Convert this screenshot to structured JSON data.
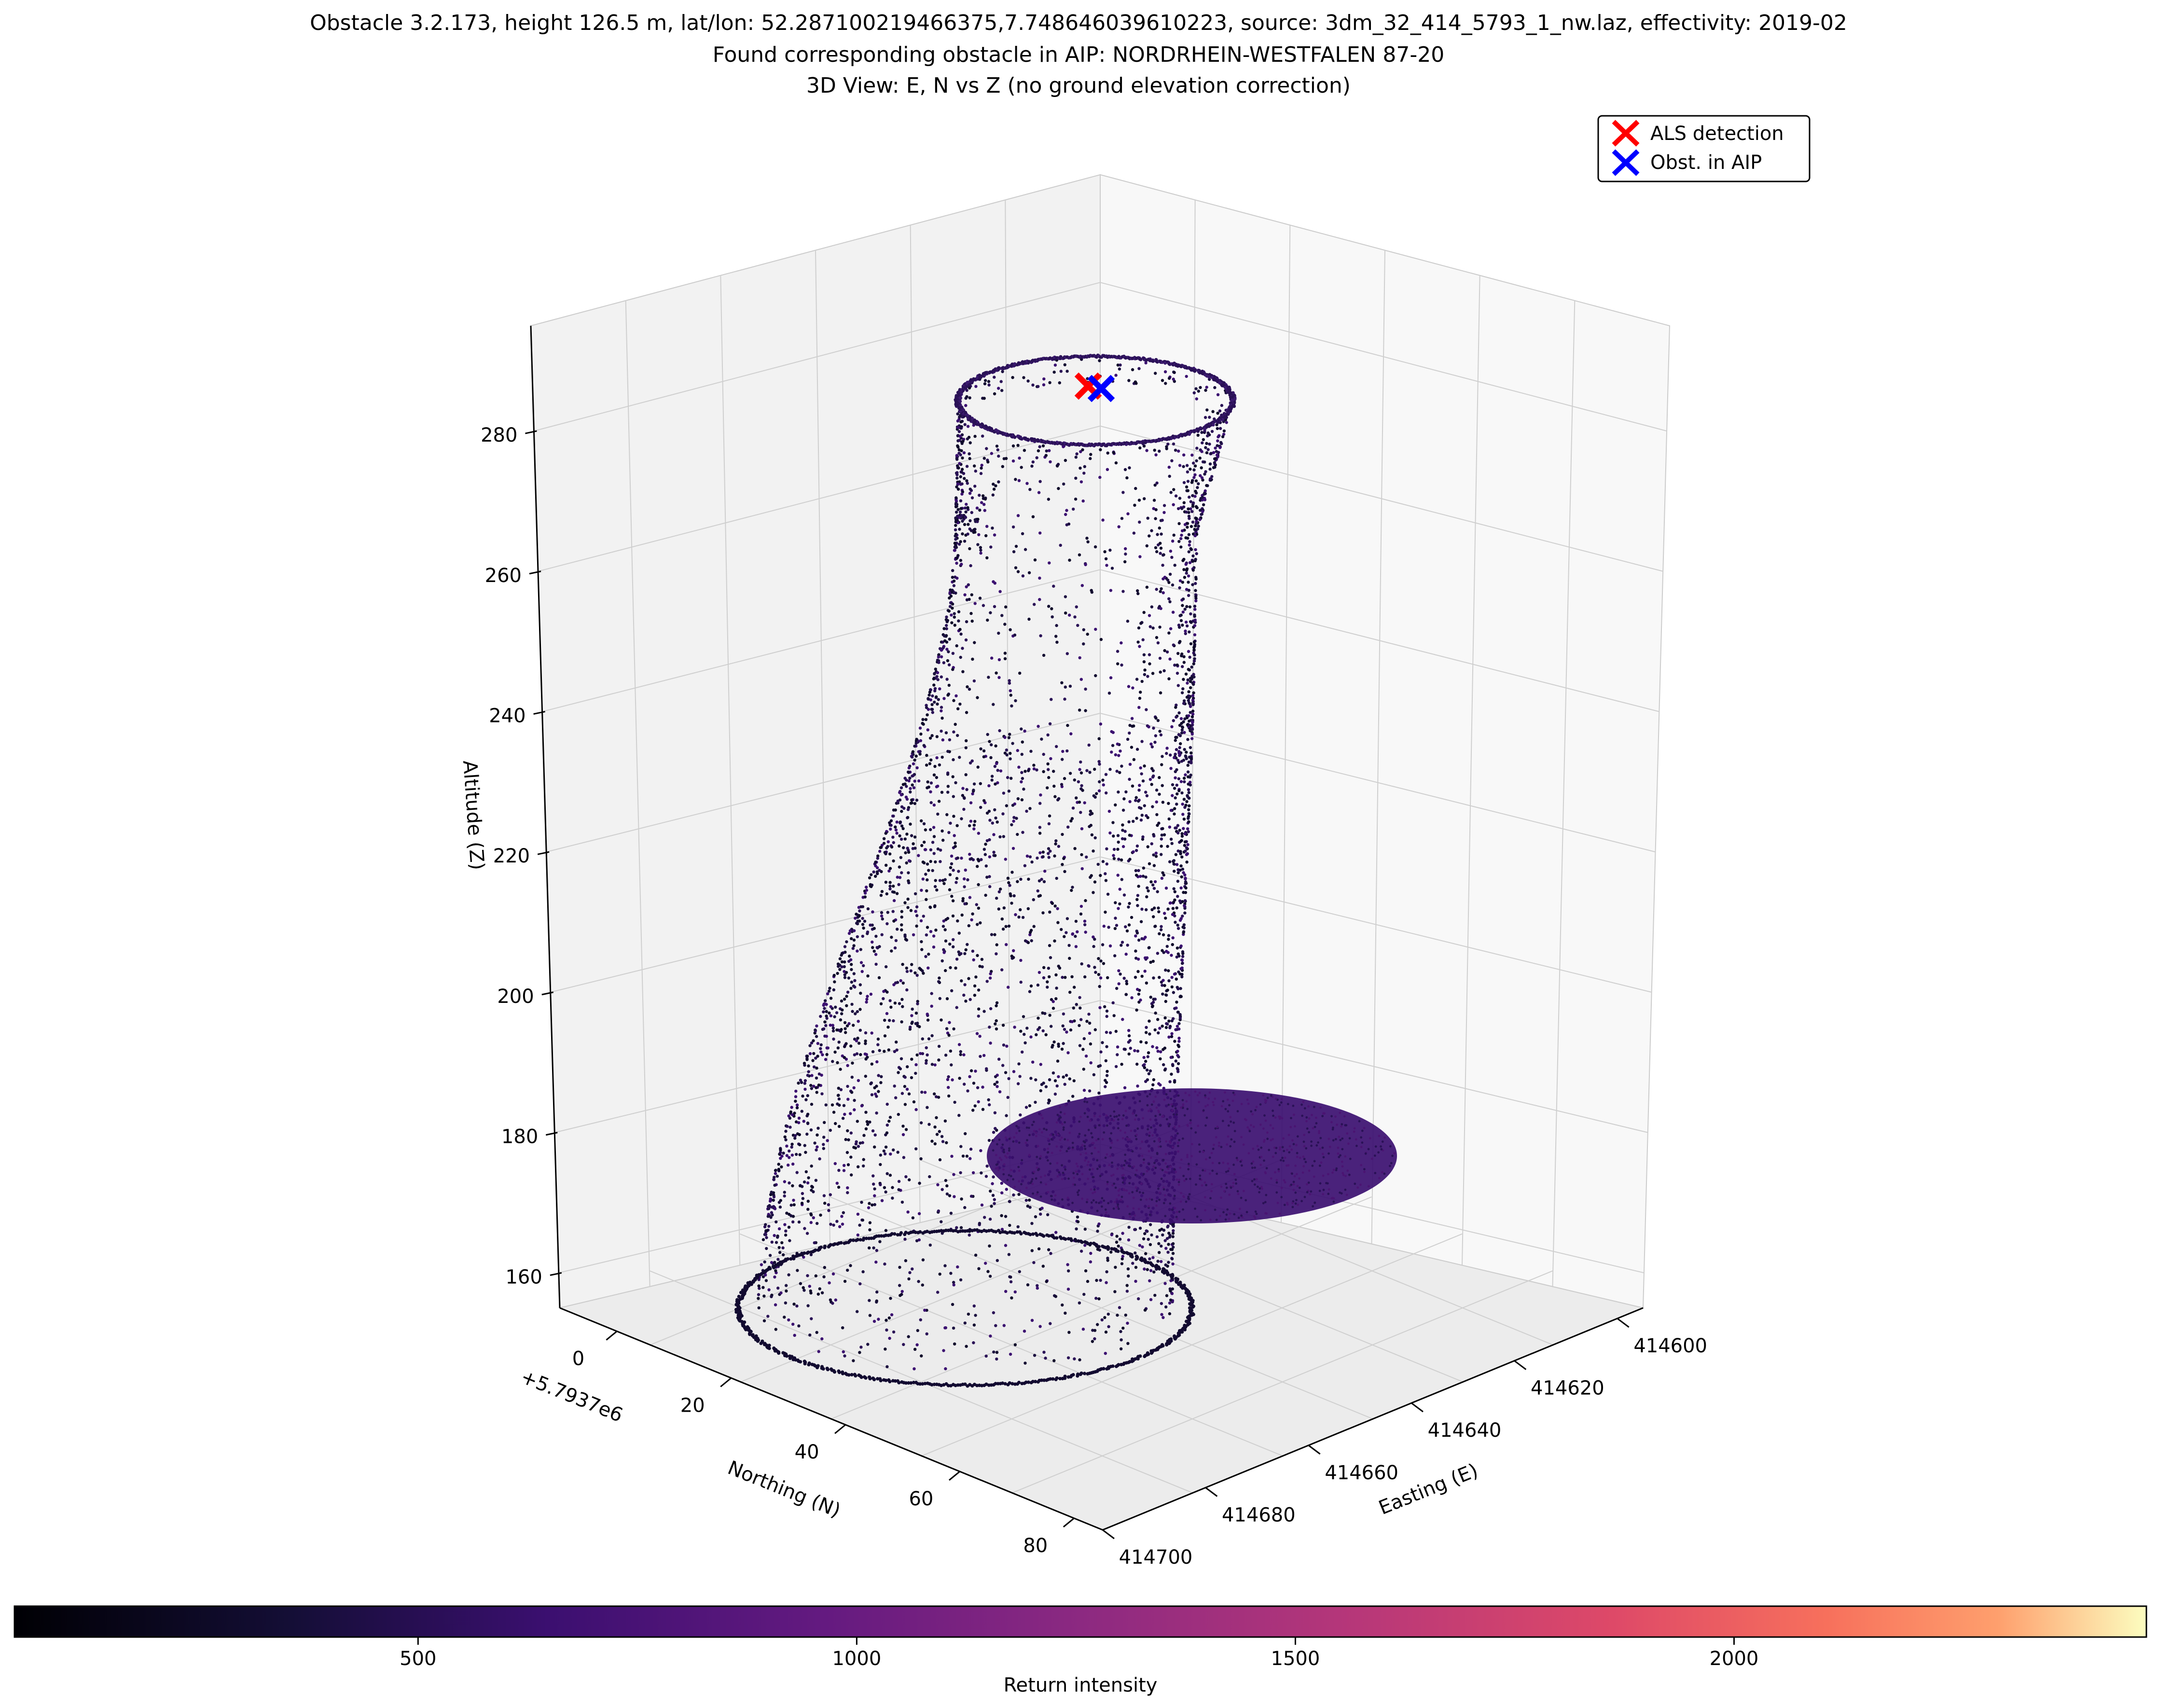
{
  "chart_data": {
    "type": "scatter",
    "title_lines": [
      "Obstacle 3.2.173, height 126.5 m, lat/lon: 52.287100219466375,7.748646039610223, source: 3dm_32_414_5793_1_nw.laz, effectivity: 2019-02",
      "Found corresponding obstacle in AIP: NORDRHEIN-WESTFALEN 87-20",
      "3D View: E, N vs Z (no ground elevation correction)"
    ],
    "xlabel": "Easting (E)",
    "ylabel": "Northing (N)",
    "zlabel": "Altitude (Z)",
    "y_offset_label": "+5.7937e6",
    "x_ticks": [
      "414600",
      "414620",
      "414640",
      "414660",
      "414680",
      "414700"
    ],
    "y_ticks": [
      "0",
      "20",
      "40",
      "60",
      "80"
    ],
    "z_ticks": [
      "160",
      "180",
      "200",
      "220",
      "240",
      "260",
      "280"
    ],
    "xlim": [
      414595,
      414700
    ],
    "ylim": [
      -10,
      85
    ],
    "zlim": [
      155,
      295
    ],
    "legend": {
      "placement": "top-right",
      "entries": [
        {
          "label": "ALS detection",
          "color": "#ff0000",
          "marker": "x"
        },
        {
          "label": "Obst. in AIP",
          "color": "#0000ff",
          "marker": "x"
        }
      ]
    },
    "markers": [
      {
        "name": "ALS detection",
        "E": 414648,
        "N": 36,
        "Z": 288,
        "color": "#ff0000"
      },
      {
        "name": "Obst. in AIP",
        "E": 414650,
        "N": 37,
        "Z": 288,
        "color": "#0000ff"
      }
    ],
    "point_cloud": {
      "description_shape": "hyperboloid cooling tower shell",
      "center_E": 414649,
      "center_N": 37,
      "base_Z": 158,
      "top_Z": 286,
      "base_radius": 47,
      "throat_radius": 27,
      "throat_Z": 255,
      "top_radius": 29,
      "inner_disc_Z": 176,
      "inner_disc_radius": 40,
      "point_color": "#1c1040"
    },
    "colorbar": {
      "label": "Return intensity",
      "colormap": "magma",
      "ticks": [
        500,
        1000,
        1500,
        2000
      ],
      "tick_labels": [
        "500",
        "1000",
        "1500",
        "2000"
      ],
      "min": 40,
      "max": 2470
    }
  }
}
